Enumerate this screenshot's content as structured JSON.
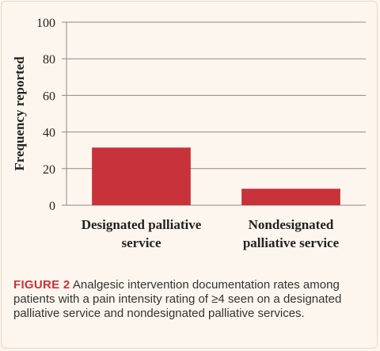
{
  "chart_data": {
    "type": "bar",
    "categories": [
      [
        "Designated palliative",
        "service"
      ],
      [
        "Nondesignated",
        "palliative service"
      ]
    ],
    "values": [
      31.5,
      9
    ],
    "ylabel": "Frequency reported",
    "ylim": [
      0,
      100
    ],
    "yticks": [
      0,
      20,
      40,
      60,
      80,
      100
    ],
    "grid": true,
    "bar_color": "#c8323b"
  },
  "caption": {
    "lead": "FIGURE 2",
    "text": "Analgesic intervention documentation rates among patients with a pain intensity rating of ≥4 seen on a designated palliative service and nondesignated palliative services."
  },
  "colors": {
    "accent": "#c8323b",
    "background": "#fdf6ee"
  }
}
